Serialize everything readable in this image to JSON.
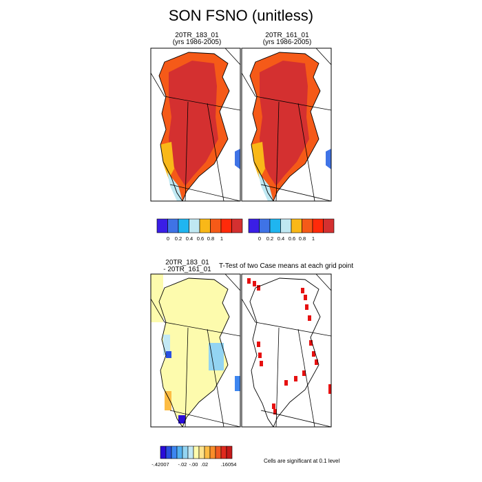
{
  "figure": {
    "title": "SON FSNO (unitless)"
  },
  "chart_data": [
    {
      "type": "heatmap",
      "title": "20TR_183_01",
      "subtitle": "(yrs 1986-2005)",
      "colorbar": {
        "colors": [
          "#3a1ee6",
          "#3f73e6",
          "#1fb5f0",
          "#bfe8f2",
          "#f9b818",
          "#f55a18",
          "#ff2a0a",
          "#d43030"
        ],
        "tick_labels": [
          "0",
          "0.2",
          "0.4",
          "0.6",
          "0.8",
          "1"
        ]
      },
      "dominant_value_range": "0.8-1 over interior ice sheet, 0.6-0.8 on southwest margin"
    },
    {
      "type": "heatmap",
      "title": "20TR_161_01",
      "subtitle": "(yrs 1986-2005)",
      "colorbar": {
        "colors": [
          "#3a1ee6",
          "#3f73e6",
          "#1fb5f0",
          "#bfe8f2",
          "#f9b818",
          "#f55a18",
          "#ff2a0a",
          "#d43030"
        ],
        "tick_labels": [
          "0",
          "0.2",
          "0.4",
          "0.6",
          "0.8",
          "1"
        ]
      }
    },
    {
      "type": "heatmap",
      "title_line1": "20TR_183_01",
      "title_line2": "- 20TR_161_01",
      "colorbar": {
        "colors": [
          "#2a0cd8",
          "#2950e0",
          "#3d86f0",
          "#55b2f0",
          "#93d4f2",
          "#c2e8f4",
          "#fdfbad",
          "#fde38c",
          "#fdbc44",
          "#f98d2a",
          "#f05a22",
          "#e02a1e",
          "#c41a1a"
        ],
        "tick_labels": [
          "-.42007",
          "-.02",
          "-.00",
          ".02",
          ".16054"
        ]
      }
    },
    {
      "type": "heatmap",
      "title": "T-Test of two Case means at each grid point",
      "note": "Cells are significant at 0.1 level"
    }
  ]
}
